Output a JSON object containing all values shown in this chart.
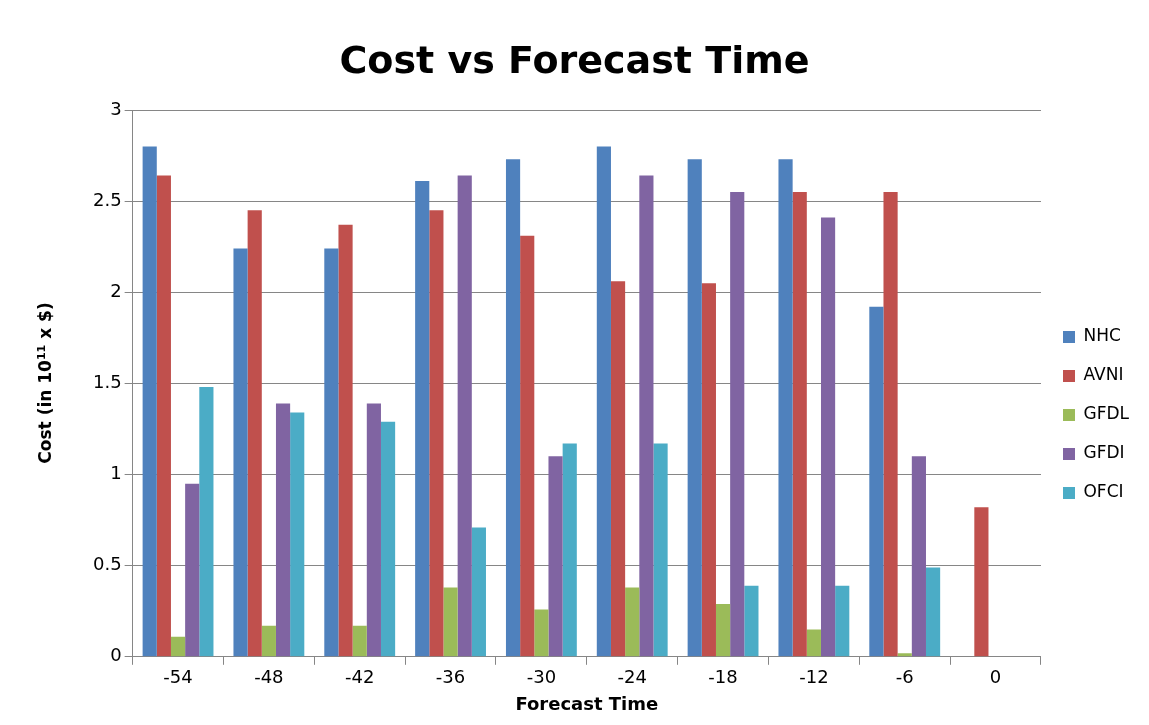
{
  "chart_data": {
    "type": "bar",
    "title": "Cost vs Forecast Time",
    "xlabel": "Forecast Time",
    "ylabel": "Cost (in 10$^{11}$ x $)",
    "categories": [
      "-54",
      "-48",
      "-42",
      "-36",
      "-30",
      "-24",
      "-18",
      "-12",
      "-6",
      "0"
    ],
    "series": [
      {
        "name": "NHC",
        "color": "#4f81bd",
        "values": [
          2.8,
          2.24,
          2.24,
          2.61,
          2.73,
          2.8,
          2.73,
          2.73,
          1.92,
          null
        ]
      },
      {
        "name": "AVNI",
        "color": "#c0504d",
        "values": [
          2.64,
          2.45,
          2.37,
          2.45,
          2.31,
          2.06,
          2.05,
          2.55,
          2.55,
          0.82
        ]
      },
      {
        "name": "GFDL",
        "color": "#9bbb59",
        "values": [
          0.11,
          0.17,
          0.17,
          0.38,
          0.26,
          0.38,
          0.29,
          0.15,
          0.02,
          null
        ]
      },
      {
        "name": "GFDI",
        "color": "#8064a2",
        "values": [
          0.95,
          1.39,
          1.39,
          2.64,
          1.1,
          2.64,
          2.55,
          2.41,
          1.1,
          null
        ]
      },
      {
        "name": "OFCI",
        "color": "#4bacc6",
        "values": [
          1.48,
          1.34,
          1.29,
          0.71,
          1.17,
          1.17,
          0.39,
          0.39,
          0.49,
          null
        ]
      }
    ],
    "ylim": [
      0,
      3
    ],
    "yticks": [
      0,
      0.5,
      1,
      1.5,
      2,
      2.5,
      3
    ],
    "grid": "y",
    "legend": "right"
  }
}
